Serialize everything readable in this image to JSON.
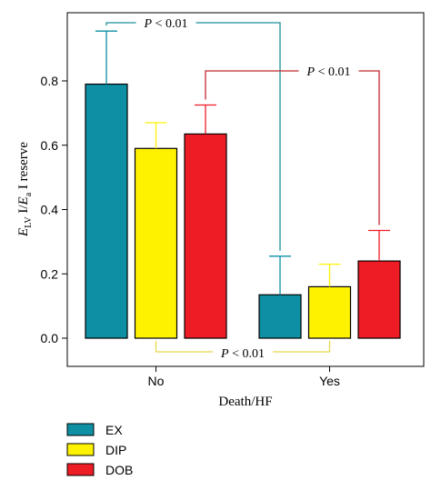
{
  "chart_data": {
    "type": "bar",
    "title": "",
    "xlabel": "Death/HF",
    "ylabel": {
      "main": "E",
      "sub1": "LV",
      "mid": " I/",
      "italic2": "E",
      "sub2": "a",
      "rest": " I reserve"
    },
    "categories": [
      "No",
      "Yes"
    ],
    "ylim": [
      0,
      1.0
    ],
    "yticks": [
      "0.0",
      "0.2",
      "0.4",
      "0.6",
      "0.8"
    ],
    "ytick_values": [
      0,
      0.2,
      0.4,
      0.6,
      0.8
    ],
    "grid": false,
    "legend_position": "bottom-left",
    "series": [
      {
        "name": "EX",
        "color": "#0e8fa3",
        "values": [
          0.79,
          0.135
        ],
        "errors": [
          0.165,
          0.12
        ]
      },
      {
        "name": "DIP",
        "color": "#fff200",
        "values": [
          0.59,
          0.16
        ],
        "errors": [
          0.08,
          0.07
        ]
      },
      {
        "name": "DOB",
        "color": "#ee1c25",
        "values": [
          0.635,
          0.24
        ],
        "errors": [
          0.09,
          0.095
        ]
      }
    ],
    "annotations": [
      {
        "series": "EX",
        "text_p": "P",
        "text_rest": " < 0.01",
        "color": "#1b8f98"
      },
      {
        "series": "DOB",
        "text_p": "P",
        "text_rest": " < 0.01",
        "color": "#c0282d"
      },
      {
        "series": "DIP",
        "text_p": "P",
        "text_rest": " < 0.01",
        "color": "#e8d84a"
      }
    ]
  }
}
